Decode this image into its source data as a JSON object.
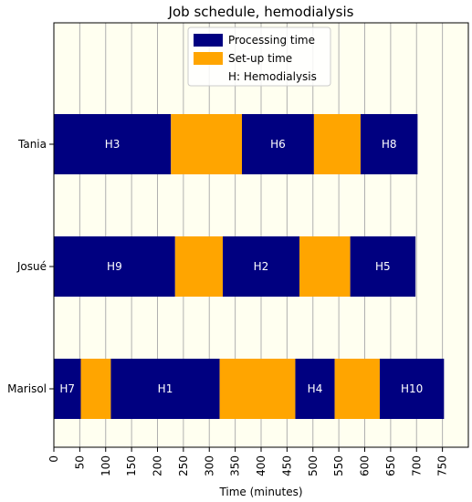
{
  "chart_data": {
    "type": "bar",
    "orientation": "horizontal",
    "title": "Job schedule, hemodialysis",
    "xlabel": "Time (minutes)",
    "ylabel": "",
    "xlim": [
      0,
      800
    ],
    "x_ticks": [
      0,
      50,
      100,
      150,
      200,
      250,
      300,
      350,
      400,
      450,
      500,
      550,
      600,
      650,
      700,
      750
    ],
    "grid": "vertical",
    "background_color": "#fffff0",
    "legend_position": "top-center",
    "legend": [
      {
        "label": "Processing time",
        "color": "#000080",
        "kind": "processing"
      },
      {
        "label": "Set-up time",
        "color": "#ffa500",
        "kind": "setup"
      },
      {
        "label": "H: Hemodialysis",
        "color": "",
        "kind": "note"
      }
    ],
    "rows": [
      {
        "name": "Tania",
        "segments": [
          {
            "kind": "processing",
            "start": 0,
            "end": 226,
            "label": "H3"
          },
          {
            "kind": "setup",
            "start": 226,
            "end": 363,
            "label": ""
          },
          {
            "kind": "processing",
            "start": 363,
            "end": 502,
            "label": "H6"
          },
          {
            "kind": "setup",
            "start": 502,
            "end": 592,
            "label": ""
          },
          {
            "kind": "processing",
            "start": 592,
            "end": 702,
            "label": "H8"
          }
        ]
      },
      {
        "name": "Josué",
        "segments": [
          {
            "kind": "processing",
            "start": 0,
            "end": 234,
            "label": "H9"
          },
          {
            "kind": "setup",
            "start": 234,
            "end": 326,
            "label": ""
          },
          {
            "kind": "processing",
            "start": 326,
            "end": 474,
            "label": "H2"
          },
          {
            "kind": "setup",
            "start": 474,
            "end": 572,
            "label": ""
          },
          {
            "kind": "processing",
            "start": 572,
            "end": 698,
            "label": "H5"
          }
        ]
      },
      {
        "name": "Marisol",
        "segments": [
          {
            "kind": "processing",
            "start": 0,
            "end": 52,
            "label": "H7"
          },
          {
            "kind": "setup",
            "start": 52,
            "end": 110,
            "label": ""
          },
          {
            "kind": "processing",
            "start": 110,
            "end": 320,
            "label": "H1"
          },
          {
            "kind": "setup",
            "start": 320,
            "end": 466,
            "label": ""
          },
          {
            "kind": "processing",
            "start": 466,
            "end": 542,
            "label": "H4"
          },
          {
            "kind": "setup",
            "start": 542,
            "end": 629,
            "label": ""
          },
          {
            "kind": "processing",
            "start": 629,
            "end": 753,
            "label": "H10"
          }
        ]
      }
    ]
  }
}
